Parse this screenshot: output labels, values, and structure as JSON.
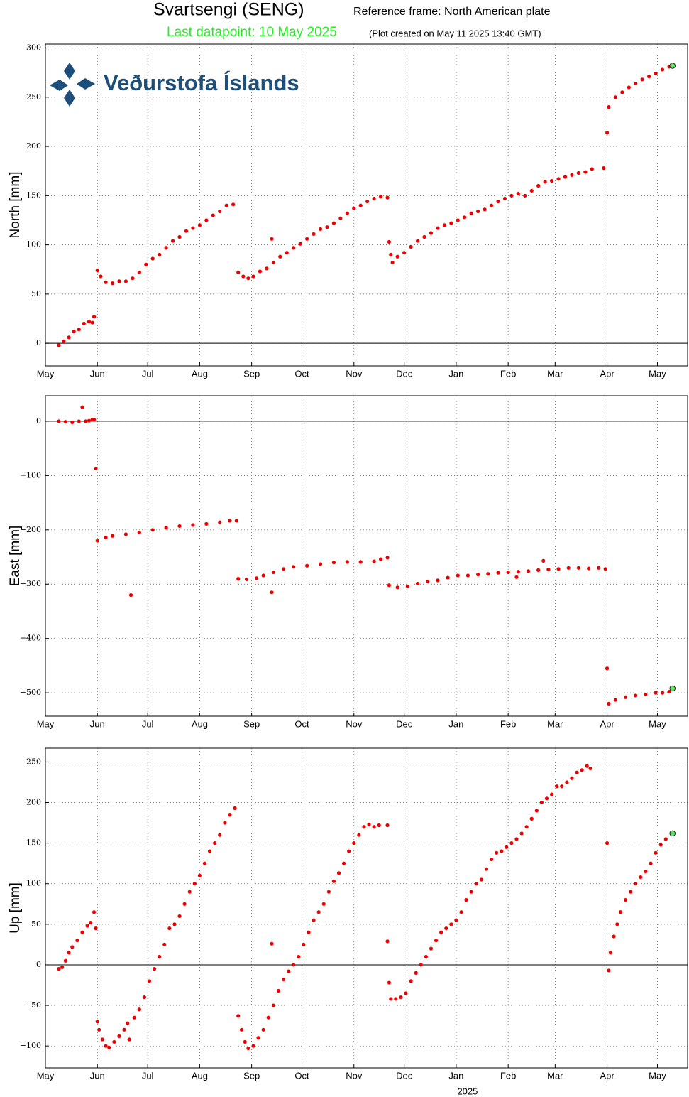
{
  "title": "Svartsengi (SENG)",
  "reference": "Reference frame: North American plate",
  "last_datapoint": "Last datapoint: 10 May 2025",
  "created": "(Plot created on May 11 2025 13:40 GMT)",
  "logo": "Veðurstofa Íslands",
  "chart_data": [
    {
      "type": "scatter",
      "ylabel": "North [mm]",
      "grid": true,
      "zero_line": true,
      "last_color": "#66dd66",
      "xlim": [
        0,
        383
      ],
      "ylim": [
        -23,
        304
      ],
      "xticks": [
        {
          "value": 0,
          "label": "May"
        },
        {
          "value": 31,
          "label": "Jun"
        },
        {
          "value": 61,
          "label": "Jul"
        },
        {
          "value": 92,
          "label": "Aug"
        },
        {
          "value": 123,
          "label": "Sep"
        },
        {
          "value": 153,
          "label": "Oct"
        },
        {
          "value": 184,
          "label": "Nov"
        },
        {
          "value": 214,
          "label": "Dec"
        },
        {
          "value": 245,
          "label": "Jan"
        },
        {
          "value": 276,
          "label": "Feb"
        },
        {
          "value": 304,
          "label": "Mar"
        },
        {
          "value": 335,
          "label": "Apr"
        },
        {
          "value": 365,
          "label": "May"
        }
      ],
      "yticks": [
        0,
        50,
        100,
        150,
        200,
        250,
        300
      ],
      "x": [
        8,
        11,
        14,
        17,
        20,
        23,
        26,
        28,
        29,
        31,
        33,
        36,
        40,
        44,
        48,
        52,
        56,
        60,
        64,
        68,
        72,
        76,
        80,
        84,
        88,
        92,
        96,
        100,
        104,
        108,
        112,
        115,
        118,
        121,
        124,
        128,
        132,
        135,
        136,
        140,
        144,
        148,
        152,
        156,
        160,
        164,
        168,
        172,
        176,
        180,
        184,
        188,
        192,
        196,
        200,
        204,
        205,
        206,
        207,
        210,
        214,
        218,
        222,
        226,
        230,
        234,
        238,
        242,
        246,
        250,
        254,
        258,
        262,
        266,
        270,
        274,
        278,
        282,
        286,
        290,
        294,
        298,
        302,
        306,
        310,
        314,
        318,
        322,
        326,
        333,
        335,
        336,
        340,
        344,
        348,
        352,
        356,
        360,
        364,
        368,
        372,
        374
      ],
      "series": [
        {
          "color": "#ee0000",
          "values": [
            -2,
            2,
            6,
            12,
            14,
            20,
            22,
            21,
            27,
            74,
            68,
            62,
            61,
            63,
            63,
            66,
            72,
            80,
            86,
            90,
            97,
            104,
            108,
            114,
            117,
            120,
            125,
            130,
            134,
            140,
            141,
            72,
            68,
            66,
            68,
            73,
            76,
            106,
            82,
            88,
            92,
            97,
            101,
            106,
            111,
            116,
            118,
            122,
            127,
            132,
            137,
            140,
            144,
            147,
            149,
            148,
            103,
            90,
            82,
            88,
            92,
            98,
            104,
            108,
            112,
            117,
            120,
            122,
            125,
            128,
            132,
            134,
            136,
            140,
            144,
            147,
            150,
            152,
            150,
            155,
            160,
            164,
            165,
            167,
            169,
            171,
            173,
            174,
            177,
            178,
            214,
            240,
            250,
            255,
            260,
            264,
            268,
            271,
            274,
            278,
            281,
            282
          ]
        }
      ]
    },
    {
      "type": "scatter",
      "ylabel": "East [mm]",
      "grid": true,
      "zero_line": true,
      "last_color": "#66dd66",
      "xlim": [
        0,
        383
      ],
      "ylim": [
        -543,
        47
      ],
      "xticks": [
        {
          "value": 0,
          "label": "May"
        },
        {
          "value": 31,
          "label": "Jun"
        },
        {
          "value": 61,
          "label": "Jul"
        },
        {
          "value": 92,
          "label": "Aug"
        },
        {
          "value": 123,
          "label": "Sep"
        },
        {
          "value": 153,
          "label": "Oct"
        },
        {
          "value": 184,
          "label": "Nov"
        },
        {
          "value": 214,
          "label": "Dec"
        },
        {
          "value": 245,
          "label": "Jan"
        },
        {
          "value": 276,
          "label": "Feb"
        },
        {
          "value": 304,
          "label": "Mar"
        },
        {
          "value": 335,
          "label": "Apr"
        },
        {
          "value": 365,
          "label": "May"
        }
      ],
      "yticks": [
        0,
        {
          "value": -100,
          "label": "−100"
        },
        {
          "value": -200,
          "label": "−200"
        },
        {
          "value": -300,
          "label": "−300"
        },
        {
          "value": -400,
          "label": "−400"
        },
        {
          "value": -500,
          "label": "−500"
        }
      ],
      "x": [
        8,
        12,
        16,
        20,
        22,
        24,
        26,
        28,
        29,
        30,
        31,
        36,
        40,
        48,
        51,
        56,
        64,
        72,
        80,
        88,
        96,
        104,
        110,
        114,
        115,
        120,
        126,
        130,
        135,
        136,
        142,
        148,
        156,
        164,
        172,
        180,
        188,
        196,
        200,
        204,
        205,
        210,
        216,
        222,
        228,
        234,
        240,
        246,
        252,
        258,
        264,
        270,
        276,
        281,
        282,
        288,
        294,
        297,
        300,
        306,
        312,
        318,
        324,
        330,
        334,
        335,
        336,
        340,
        346,
        352,
        358,
        364,
        368,
        372,
        374
      ],
      "series": [
        {
          "color": "#ee0000",
          "values": [
            0,
            -1,
            -2,
            0,
            26,
            0,
            1,
            3,
            3,
            -87,
            -220,
            -214,
            -211,
            -208,
            -320,
            -205,
            -200,
            -196,
            -193,
            -191,
            -189,
            -186,
            -183,
            -183,
            -290,
            -291,
            -289,
            -284,
            -315,
            -278,
            -272,
            -268,
            -266,
            -263,
            -260,
            -259,
            -259,
            -258,
            -254,
            -251,
            -302,
            -306,
            -304,
            -299,
            -295,
            -293,
            -288,
            -284,
            -284,
            -282,
            -281,
            -279,
            -278,
            -287,
            -277,
            -276,
            -274,
            -257,
            -273,
            -272,
            -270,
            -270,
            -271,
            -270,
            -272,
            -455,
            -520,
            -513,
            -508,
            -505,
            -503,
            -500,
            -500,
            -498,
            -492
          ]
        }
      ]
    },
    {
      "type": "scatter",
      "ylabel": "Up [mm]",
      "xlabel": "2025",
      "grid": true,
      "zero_line": true,
      "last_color": "#66dd66",
      "xlim": [
        0,
        383
      ],
      "ylim": [
        -127,
        267
      ],
      "xticks": [
        {
          "value": 0,
          "label": "May"
        },
        {
          "value": 31,
          "label": "Jun"
        },
        {
          "value": 61,
          "label": "Jul"
        },
        {
          "value": 92,
          "label": "Aug"
        },
        {
          "value": 123,
          "label": "Sep"
        },
        {
          "value": 153,
          "label": "Oct"
        },
        {
          "value": 184,
          "label": "Nov"
        },
        {
          "value": 214,
          "label": "Dec"
        },
        {
          "value": 245,
          "label": "Jan"
        },
        {
          "value": 276,
          "label": "Feb"
        },
        {
          "value": 304,
          "label": "Mar"
        },
        {
          "value": 335,
          "label": "Apr"
        },
        {
          "value": 365,
          "label": "May"
        }
      ],
      "yticks": [
        {
          "value": -100,
          "label": "−100"
        },
        {
          "value": -50,
          "label": "−50"
        },
        0,
        50,
        100,
        150,
        200,
        250
      ],
      "x": [
        8,
        10,
        12,
        14,
        16,
        19,
        22,
        25,
        27,
        29,
        30,
        31,
        32,
        34,
        36,
        38,
        41,
        44,
        47,
        49,
        50,
        53,
        56,
        59,
        62,
        65,
        68,
        71,
        74,
        77,
        80,
        83,
        86,
        89,
        92,
        95,
        98,
        101,
        104,
        107,
        110,
        113,
        115,
        117,
        119,
        121,
        124,
        127,
        130,
        133,
        135,
        136,
        139,
        142,
        145,
        148,
        151,
        154,
        157,
        160,
        163,
        166,
        169,
        172,
        175,
        178,
        181,
        184,
        187,
        190,
        193,
        196,
        199,
        204,
        204,
        205,
        206,
        209,
        212,
        215,
        218,
        221,
        224,
        227,
        230,
        233,
        236,
        239,
        242,
        245,
        248,
        251,
        254,
        257,
        260,
        263,
        266,
        269,
        272,
        275,
        278,
        281,
        284,
        287,
        290,
        293,
        296,
        299,
        302,
        305,
        308,
        311,
        314,
        317,
        320,
        323,
        325,
        335,
        336,
        337,
        339,
        341,
        343,
        346,
        349,
        352,
        355,
        358,
        361,
        364,
        367,
        370,
        374
      ],
      "series": [
        {
          "color": "#ee0000",
          "values": [
            -5,
            -3,
            5,
            15,
            22,
            30,
            40,
            48,
            52,
            65,
            45,
            -70,
            -80,
            -92,
            -100,
            -102,
            -95,
            -88,
            -80,
            -72,
            -92,
            -65,
            -55,
            -40,
            -20,
            -5,
            10,
            25,
            45,
            50,
            60,
            75,
            90,
            100,
            110,
            125,
            140,
            150,
            160,
            175,
            185,
            193,
            -63,
            -80,
            -95,
            -103,
            -100,
            -90,
            -80,
            -65,
            26,
            -50,
            -32,
            -18,
            -8,
            0,
            10,
            25,
            40,
            55,
            65,
            75,
            90,
            103,
            113,
            125,
            140,
            150,
            160,
            170,
            173,
            170,
            172,
            172,
            29,
            -22,
            -42,
            -42,
            -40,
            -35,
            -20,
            -10,
            0,
            10,
            20,
            30,
            40,
            45,
            50,
            55,
            65,
            80,
            90,
            100,
            105,
            118,
            130,
            138,
            140,
            145,
            150,
            155,
            162,
            170,
            180,
            190,
            200,
            205,
            210,
            220,
            220,
            225,
            230,
            237,
            240,
            245,
            242,
            150,
            -7,
            15,
            35,
            50,
            65,
            80,
            90,
            100,
            108,
            115,
            125,
            138,
            148,
            155,
            162
          ]
        }
      ]
    }
  ]
}
